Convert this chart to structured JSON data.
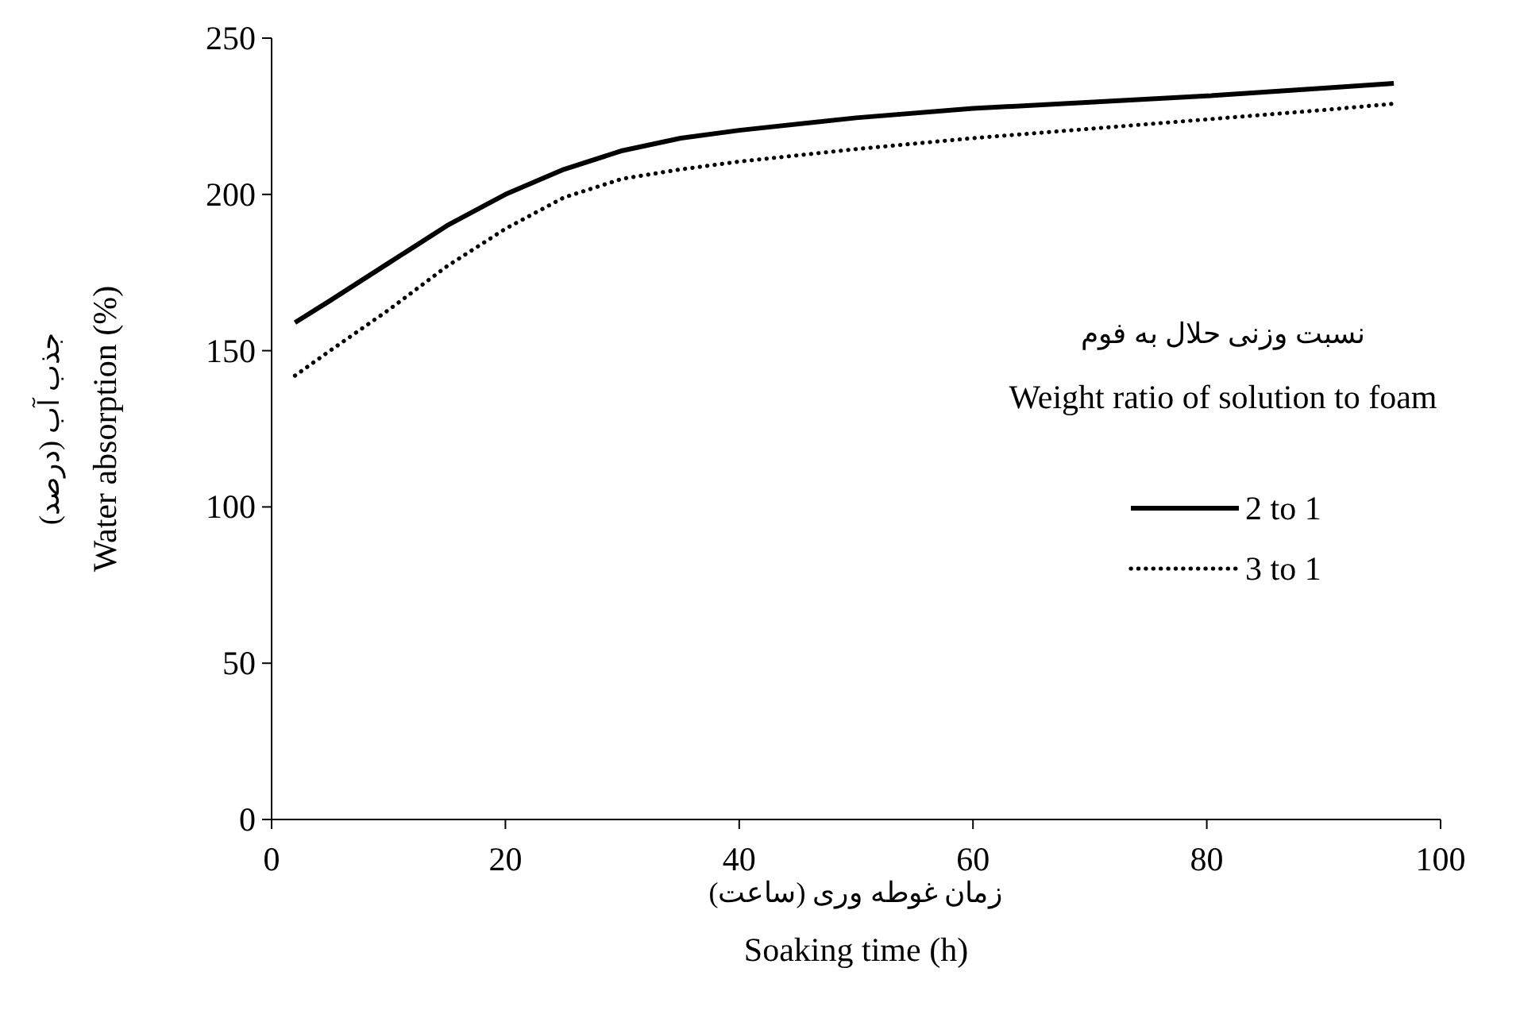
{
  "chart_data": {
    "type": "line",
    "xlabel": "زمان غوطه وری (ساعت)\nSoaking time (h)",
    "ylabel": "جذب آب (درصد)\nWater absorption (%)",
    "legend_title": "نسبت وزنی حلال به فوم\nWeight ratio of solution to foam",
    "legend": "right",
    "marker": "none",
    "grid": false,
    "xlim": [
      0,
      100
    ],
    "xticks": [
      0,
      20,
      40,
      60,
      80,
      100
    ],
    "ylim": [
      0,
      250
    ],
    "yticks": [
      0,
      50,
      100,
      150,
      200,
      250
    ],
    "x": [
      2,
      5,
      10,
      15,
      20,
      25,
      30,
      35,
      40,
      50,
      60,
      70,
      80,
      90,
      96
    ],
    "series": [
      {
        "name": "2 to 1",
        "color": "#000000",
        "line_style": "solid",
        "values": [
          159,
          166,
          178,
          190,
          200,
          208,
          214,
          218,
          220.5,
          224.5,
          227.5,
          229.5,
          231.5,
          234,
          235.5
        ]
      },
      {
        "name": "3 to 1",
        "color": "#000000",
        "line_style": "dotted",
        "values": [
          142,
          150,
          163,
          177,
          189,
          199,
          205,
          208,
          210.5,
          214.5,
          218,
          221,
          224,
          227,
          229
        ]
      }
    ]
  }
}
